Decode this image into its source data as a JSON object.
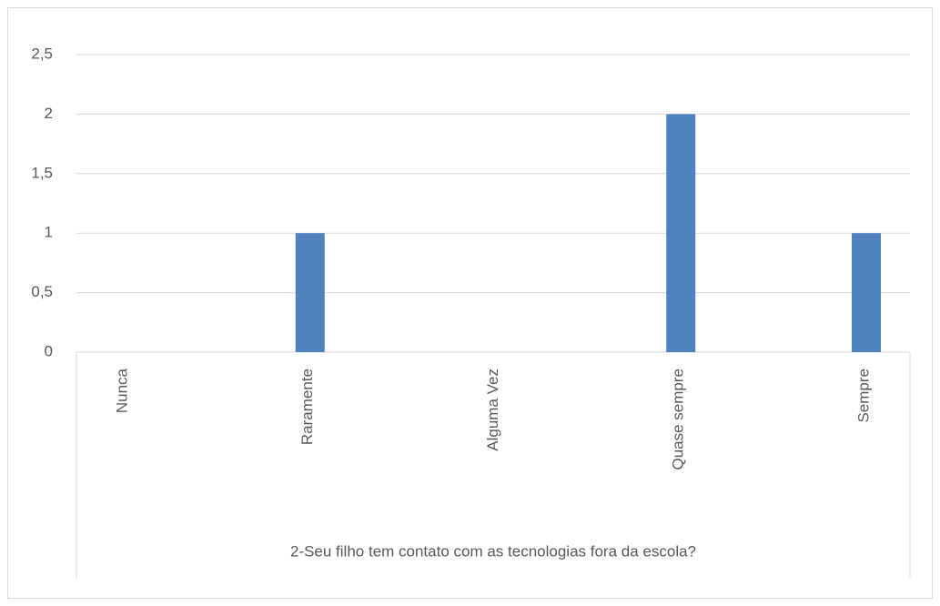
{
  "chart_data": {
    "type": "bar",
    "xlabel": "2-Seu filho tem contato com as tecnologias fora da escola?",
    "categories": [
      "Nunca",
      "Raramente",
      "Alguma Vez",
      "Quase sempre",
      "Sempre"
    ],
    "values": [
      0,
      1,
      0,
      2,
      1
    ],
    "color": "#4f81bd",
    "ylim": [
      0,
      2.5
    ],
    "yticks": [
      0,
      {
        "value": 0.5,
        "label": "0,5"
      },
      1,
      {
        "value": 1.5,
        "label": "1,5"
      },
      2,
      {
        "value": 2.5,
        "label": "2,5"
      }
    ],
    "grid": true
  }
}
